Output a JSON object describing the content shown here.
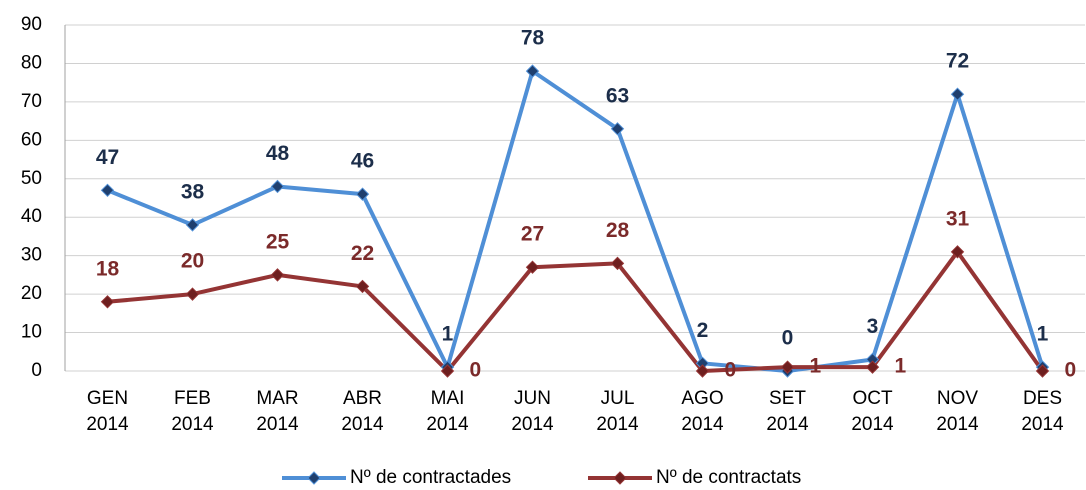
{
  "chart_data": {
    "type": "line",
    "categories": [
      "GEN 2014",
      "FEB 2014",
      "MAR 2014",
      "ABR 2014",
      "MAI 2014",
      "JUN 2014",
      "JUL 2014",
      "AGO 2014",
      "SET 2014",
      "OCT 2014",
      "NOV 2014",
      "DES 2014"
    ],
    "series": [
      {
        "name": "Nº de contractades",
        "color": "#4f8fd6",
        "marker_color": "#1f3f6e",
        "label_color": "#1c2e4a",
        "values": [
          47,
          38,
          48,
          46,
          1,
          78,
          63,
          2,
          0,
          3,
          72,
          1
        ]
      },
      {
        "name": "Nº de contractats",
        "color": "#943434",
        "marker_color": "#6e1f1f",
        "label_color": "#7b2a2a",
        "values": [
          18,
          20,
          25,
          22,
          0,
          27,
          28,
          0,
          1,
          1,
          31,
          0
        ]
      }
    ],
    "ylim": [
      0,
      90
    ],
    "yticks": [
      0,
      10,
      20,
      30,
      40,
      50,
      60,
      70,
      80,
      90
    ],
    "grid": true,
    "legend": "bottom"
  }
}
